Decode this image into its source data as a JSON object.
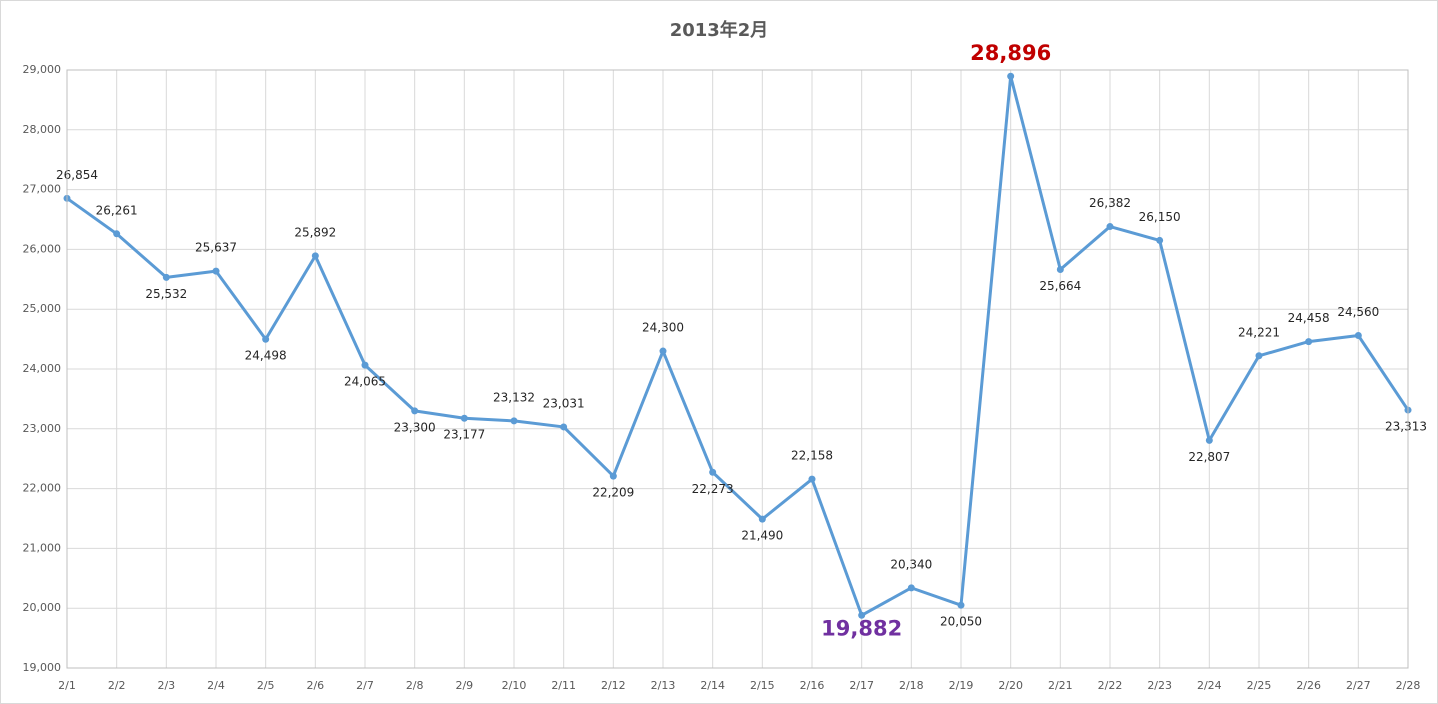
{
  "chart_data": {
    "type": "line",
    "title": "2013年2月",
    "categories": [
      "2/1",
      "2/2",
      "2/3",
      "2/4",
      "2/5",
      "2/6",
      "2/7",
      "2/8",
      "2/9",
      "2/10",
      "2/11",
      "2/12",
      "2/13",
      "2/14",
      "2/15",
      "2/16",
      "2/17",
      "2/18",
      "2/19",
      "2/20",
      "2/21",
      "2/22",
      "2/23",
      "2/24",
      "2/25",
      "2/26",
      "2/27",
      "2/28"
    ],
    "series": [
      {
        "color": "#5b9bd5",
        "values": [
          26854,
          26261,
          25532,
          25637,
          24498,
          25892,
          24065,
          23300,
          23177,
          23132,
          23031,
          22209,
          24300,
          22273,
          21490,
          22158,
          19882,
          20340,
          20050,
          28896,
          25664,
          26382,
          26150,
          22807,
          24221,
          24458,
          24560,
          23313
        ],
        "value_labels": [
          "26,854",
          "26,261",
          "25,532",
          "25,637",
          "24,498",
          "25,892",
          "24,065",
          "23,300",
          "23,177",
          "23,132",
          "23,031",
          "22,209",
          "24,300",
          "22,273",
          "21,490",
          "22,158",
          "19,882",
          "20,340",
          "20,050",
          "28,896",
          "25,664",
          "26,382",
          "26,150",
          "22,807",
          "24,221",
          "24,458",
          "24,560",
          "23,313"
        ]
      }
    ],
    "max_label_color": "#c00000",
    "min_label_color": "#7030a0",
    "ylim": [
      19000,
      29000
    ],
    "yticks": [
      {
        "value": 19000,
        "label": "19,000"
      },
      {
        "value": 20000,
        "label": "20,000"
      },
      {
        "value": 21000,
        "label": "21,000"
      },
      {
        "value": 22000,
        "label": "22,000"
      },
      {
        "value": 23000,
        "label": "23,000"
      },
      {
        "value": 24000,
        "label": "24,000"
      },
      {
        "value": 25000,
        "label": "25,000"
      },
      {
        "value": 26000,
        "label": "26,000"
      },
      {
        "value": 27000,
        "label": "27,000"
      },
      {
        "value": 28000,
        "label": "28,000"
      },
      {
        "value": 29000,
        "label": "29,000"
      }
    ],
    "grid": true
  }
}
